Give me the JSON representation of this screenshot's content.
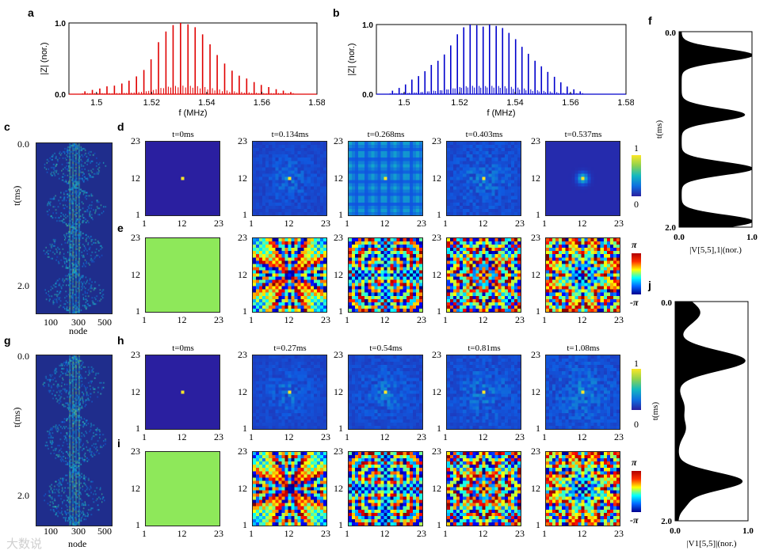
{
  "panel_letters": {
    "a": "a",
    "b": "b",
    "c": "c",
    "d": "d",
    "e": "e",
    "f": "f",
    "g": "g",
    "h": "h",
    "i": "i",
    "j": "j"
  },
  "colors": {
    "spectrum_a": "#e00000",
    "spectrum_b": "#0000cc",
    "dark_bg": "#1f2d8c"
  },
  "chart_data": [
    {
      "id": "a",
      "type": "line",
      "color": "#e00000",
      "xlabel": "f (MHz)",
      "ylabel": "|Z| (nor.)",
      "xlim": [
        1.49,
        1.58
      ],
      "ylim": [
        0,
        1
      ],
      "xticks": [
        "1.5",
        "1.52",
        "1.54",
        "1.56",
        "1.58"
      ],
      "yticks": [
        "0.0",
        "1.0"
      ],
      "peaks": [
        [
          1.4958,
          0.04
        ],
        [
          1.4985,
          0.06
        ],
        [
          1.5012,
          0.08
        ],
        [
          1.5038,
          0.11
        ],
        [
          1.5065,
          0.12
        ],
        [
          1.5092,
          0.15
        ],
        [
          1.5118,
          0.19
        ],
        [
          1.5145,
          0.25
        ],
        [
          1.5172,
          0.34
        ],
        [
          1.5198,
          0.49
        ],
        [
          1.5225,
          0.73
        ],
        [
          1.5252,
          0.88
        ],
        [
          1.5278,
          0.97
        ],
        [
          1.5305,
          1.0
        ],
        [
          1.5332,
          0.98
        ],
        [
          1.5358,
          0.94
        ],
        [
          1.5385,
          0.84
        ],
        [
          1.5412,
          0.7
        ],
        [
          1.5438,
          0.55
        ],
        [
          1.5465,
          0.43
        ],
        [
          1.5492,
          0.33
        ],
        [
          1.5518,
          0.26
        ],
        [
          1.5545,
          0.22
        ],
        [
          1.5572,
          0.17
        ],
        [
          1.5598,
          0.13
        ],
        [
          1.5625,
          0.1
        ],
        [
          1.5652,
          0.07
        ],
        [
          1.5678,
          0.05
        ],
        [
          1.5705,
          0.03
        ]
      ]
    },
    {
      "id": "b",
      "type": "line",
      "color": "#0000cc",
      "xlabel": "f (MHz)",
      "ylabel": "|Z| (nor.)",
      "xlim": [
        1.49,
        1.58
      ],
      "ylim": [
        0,
        1
      ],
      "xticks": [
        "1.5",
        "1.52",
        "1.54",
        "1.56",
        "1.58"
      ],
      "yticks": [
        "0.0",
        "1.0"
      ],
      "peaks": [
        [
          1.4958,
          0.05
        ],
        [
          1.4982,
          0.09
        ],
        [
          1.5005,
          0.14
        ],
        [
          1.5028,
          0.21
        ],
        [
          1.5052,
          0.26
        ],
        [
          1.5075,
          0.33
        ],
        [
          1.5098,
          0.42
        ],
        [
          1.5122,
          0.48
        ],
        [
          1.5145,
          0.57
        ],
        [
          1.5168,
          0.7
        ],
        [
          1.5192,
          0.86
        ],
        [
          1.5215,
          0.96
        ],
        [
          1.5238,
          1.0
        ],
        [
          1.5262,
          0.99
        ],
        [
          1.5285,
          0.97
        ],
        [
          1.5308,
          1.0
        ],
        [
          1.5332,
          0.98
        ],
        [
          1.5355,
          0.95
        ],
        [
          1.5378,
          0.88
        ],
        [
          1.5402,
          0.79
        ],
        [
          1.5425,
          0.68
        ],
        [
          1.5448,
          0.58
        ],
        [
          1.5472,
          0.48
        ],
        [
          1.5495,
          0.4
        ],
        [
          1.5518,
          0.32
        ],
        [
          1.5542,
          0.25
        ],
        [
          1.5565,
          0.17
        ],
        [
          1.5588,
          0.11
        ],
        [
          1.5612,
          0.07
        ],
        [
          1.5635,
          0.04
        ]
      ]
    },
    {
      "id": "f",
      "type": "area",
      "color": "#000000",
      "xlabel": "|V[5,5],1|(nor.)",
      "ylabel": "t(ms)",
      "xlim": [
        0,
        1
      ],
      "ylim": [
        0,
        2
      ],
      "xticks": [
        "0.0",
        "1.0"
      ],
      "yticks": [
        "0.0",
        "2.0"
      ],
      "series": [
        {
          "name": "|V|",
          "y": [
            0,
            0.1,
            0.2,
            0.3,
            0.4,
            0.5,
            0.6,
            0.7,
            0.8,
            0.9,
            1.0,
            1.1,
            1.2,
            1.3,
            1.4,
            1.5,
            1.6,
            1.7,
            1.8,
            1.9,
            2.0
          ]
        }
      ]
    },
    {
      "id": "j",
      "type": "area",
      "color": "#000000",
      "xlabel": "|V1[5,5]|(nor.)",
      "ylabel": "t(ms)",
      "xlim": [
        0,
        1
      ],
      "ylim": [
        0,
        2
      ],
      "xticks": [
        "0.0",
        "1.0"
      ],
      "yticks": [
        "0.0",
        "2.0"
      ],
      "series": [
        {
          "name": "|V|",
          "y": [
            0,
            0.2,
            0.4,
            0.6,
            0.8,
            1.0,
            1.2,
            1.4,
            1.6,
            1.8,
            2.0
          ]
        }
      ]
    },
    {
      "id": "c",
      "type": "heatmap",
      "xlabel": "node",
      "ylabel": "t(ms)",
      "xticks": [
        "100",
        "300",
        "500"
      ],
      "yticks": [
        "0.0",
        "2.0"
      ]
    },
    {
      "id": "g",
      "type": "heatmap",
      "xlabel": "node",
      "ylabel": "t(ms)",
      "xticks": [
        "100",
        "300",
        "500"
      ],
      "yticks": [
        "0.0",
        "2.0"
      ]
    },
    {
      "id": "d",
      "type": "heatmap",
      "titles": [
        "t=0ms",
        "t=0.134ms",
        "t=0.268ms",
        "t=0.403ms",
        "t=0.537ms"
      ],
      "axis_ticks": [
        "1",
        "12",
        "23"
      ],
      "colorbar": {
        "max": "1",
        "min": "0"
      }
    },
    {
      "id": "e",
      "type": "heatmap",
      "axis_ticks": [
        "1",
        "12",
        "23"
      ],
      "colorbar": {
        "max": "π",
        "min": "-π"
      }
    },
    {
      "id": "h",
      "type": "heatmap",
      "titles": [
        "t=0ms",
        "t=0.27ms",
        "t=0.54ms",
        "t=0.81ms",
        "t=1.08ms"
      ],
      "axis_ticks": [
        "1",
        "12",
        "23"
      ],
      "colorbar": {
        "max": "1",
        "min": "0"
      }
    },
    {
      "id": "i",
      "type": "heatmap",
      "axis_ticks": [
        "1",
        "12",
        "23"
      ],
      "colorbar": {
        "max": "π",
        "min": "-π"
      }
    }
  ],
  "watermark": "大数说"
}
